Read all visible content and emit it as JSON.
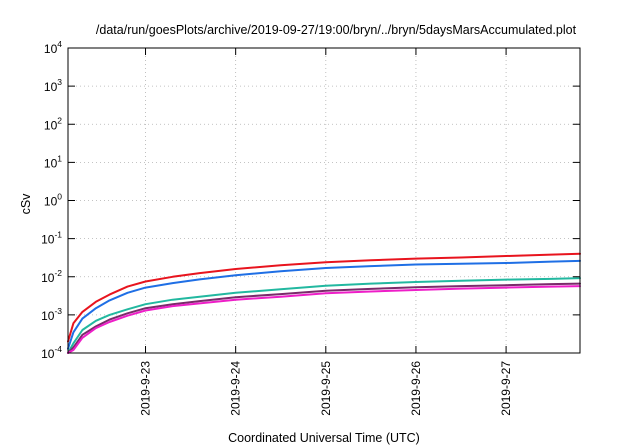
{
  "chart_data": {
    "type": "line",
    "title": "/data/run/goesPlots/archive/2019-09-27/19:00/bryn/../bryn/5daysMarsAccumulated.plot",
    "xlabel": "Coordinated Universal Time (UTC)",
    "ylabel": "cSv",
    "yscale": "log",
    "ylim": [
      0.0001,
      10000
    ],
    "y_ticks": [
      {
        "value": 0.0001,
        "base": "10",
        "exp": "-4"
      },
      {
        "value": 0.001,
        "base": "10",
        "exp": "-3"
      },
      {
        "value": 0.01,
        "base": "10",
        "exp": "-2"
      },
      {
        "value": 0.1,
        "base": "10",
        "exp": "-1"
      },
      {
        "value": 1,
        "base": "10",
        "exp": "0"
      },
      {
        "value": 10,
        "base": "10",
        "exp": "1"
      },
      {
        "value": 100,
        "base": "10",
        "exp": "2"
      },
      {
        "value": 1000,
        "base": "10",
        "exp": "3"
      },
      {
        "value": 10000,
        "base": "10",
        "exp": "4"
      }
    ],
    "xlim": [
      2019.0922,
      2019.0928
    ],
    "x_ticks": [
      "2019-9-23",
      "2019-9-24",
      "2019-9-25",
      "2019-9-26",
      "2019-9-27"
    ],
    "x_tick_days": [
      1,
      2,
      3,
      4,
      5
    ],
    "x_range_days": [
      0.14,
      5.82
    ],
    "grid": true,
    "x": [
      0.14,
      0.2,
      0.3,
      0.45,
      0.6,
      0.8,
      1.0,
      1.3,
      1.6,
      2.0,
      2.5,
      3.0,
      3.5,
      4.0,
      4.5,
      5.0,
      5.5,
      5.82
    ],
    "series": [
      {
        "color": "#e8141e",
        "values": [
          0.0002,
          0.0006,
          0.0012,
          0.0022,
          0.0034,
          0.0055,
          0.0075,
          0.01,
          0.0125,
          0.016,
          0.02,
          0.024,
          0.027,
          0.03,
          0.032,
          0.035,
          0.038,
          0.04
        ]
      },
      {
        "color": "#1f6fe5",
        "values": [
          0.00013,
          0.00035,
          0.0008,
          0.0015,
          0.0024,
          0.0038,
          0.0052,
          0.0068,
          0.0085,
          0.011,
          0.014,
          0.017,
          0.019,
          0.021,
          0.022,
          0.023,
          0.025,
          0.026
        ]
      },
      {
        "color": "#22b8a0",
        "values": [
          0.0001,
          0.00018,
          0.0004,
          0.0007,
          0.001,
          0.0014,
          0.0019,
          0.0025,
          0.003,
          0.0038,
          0.0047,
          0.0058,
          0.0066,
          0.0073,
          0.0079,
          0.0084,
          0.0088,
          0.0092
        ]
      },
      {
        "color": "#7a2a6a",
        "values": [
          0.0001,
          0.00014,
          0.0003,
          0.0005,
          0.00075,
          0.0011,
          0.0015,
          0.0019,
          0.0023,
          0.0029,
          0.0035,
          0.0043,
          0.0048,
          0.0053,
          0.0057,
          0.006,
          0.0064,
          0.0066
        ]
      },
      {
        "color": "#ee1ec8",
        "values": [
          0.0001,
          0.00012,
          0.00025,
          0.00045,
          0.00065,
          0.00095,
          0.0013,
          0.0017,
          0.002,
          0.0025,
          0.003,
          0.0037,
          0.0041,
          0.0045,
          0.0049,
          0.0052,
          0.0055,
          0.0057
        ]
      }
    ]
  }
}
